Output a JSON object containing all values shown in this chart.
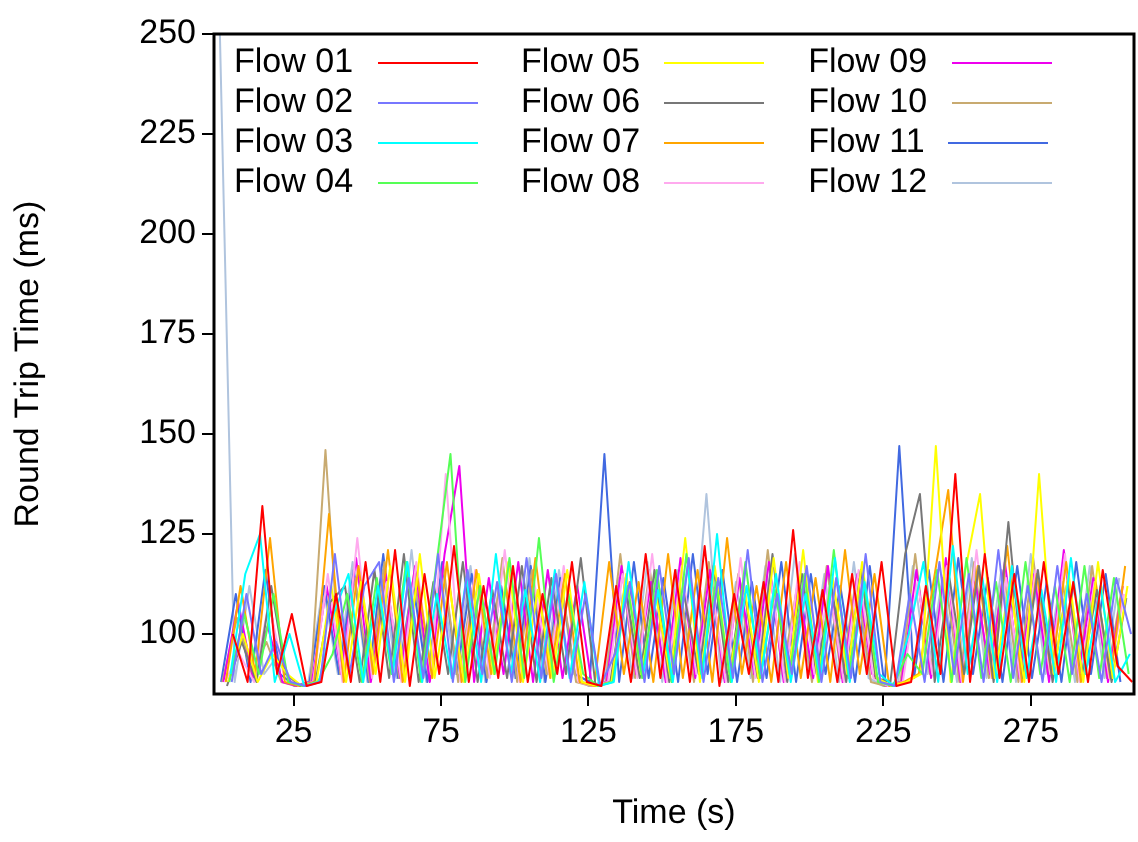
{
  "chart_data": {
    "type": "line",
    "xlabel": "Time (s)",
    "ylabel": "Round Trip Time (ms)",
    "xlim": [
      -2,
      310
    ],
    "xticks": [
      25,
      75,
      125,
      175,
      225,
      275
    ],
    "ylim": [
      85,
      250
    ],
    "yticks": [
      100,
      125,
      150,
      175,
      200,
      225,
      250
    ],
    "grid": false,
    "legend": "top",
    "marker": "none",
    "line_style": "solid",
    "x": [
      0,
      5,
      10,
      15,
      20,
      25,
      30,
      35,
      40,
      45,
      50,
      55,
      60,
      65,
      70,
      75,
      80,
      85,
      90,
      95,
      100,
      105,
      110,
      115,
      120,
      125,
      130,
      135,
      140,
      145,
      150,
      155,
      160,
      165,
      170,
      175,
      180,
      185,
      190,
      195,
      200,
      205,
      210,
      215,
      220,
      225,
      230,
      235,
      240,
      245,
      250,
      255,
      260,
      265,
      270,
      275,
      280,
      285,
      290,
      295,
      300,
      305
    ],
    "series": [
      {
        "name": "Flow 01",
        "color": "#ff0000",
        "x": [
          4.4,
          9.4,
          14.4,
          19.4,
          24.4,
          29.4,
          34.4,
          39.4,
          44.4,
          49.4,
          54.4,
          59.4,
          64.4,
          69.4,
          74.4,
          79.4,
          84.4,
          89.4,
          94.4,
          99.4,
          104.4,
          109.4,
          114.4,
          119.4,
          124.4,
          129.4,
          134.4,
          139.4,
          144.4,
          149.4,
          154.4,
          159.4,
          164.4,
          169.4,
          174.4,
          179.4,
          184.4,
          189.4,
          194.4,
          199.4,
          204.4,
          209.4,
          214.4,
          219.4,
          224.4,
          229.4,
          234.4,
          239.4,
          244.4,
          249.4,
          254.4,
          259.4,
          264.4,
          269.4,
          274.4,
          279.4,
          284.4,
          289.4,
          294.4,
          299.4,
          304.4,
          309.4
        ],
        "values": [
          100,
          88,
          132,
          90,
          105,
          87,
          88,
          110,
          88,
          118,
          88,
          121,
          87,
          115,
          90,
          122,
          88,
          112,
          89,
          117,
          88,
          110,
          90,
          118,
          88,
          87,
          112,
          88,
          120,
          89,
          116,
          88,
          122,
          87,
          110,
          90,
          113,
          88,
          126,
          89,
          111,
          88,
          115,
          90,
          118,
          87,
          88,
          112,
          90,
          140,
          88,
          120,
          89,
          115,
          88,
          118,
          90,
          113,
          88,
          116,
          92,
          88
        ]
      },
      {
        "name": "Flow 02",
        "color": "#7777ff",
        "x": [
          4,
          9,
          14,
          19,
          24,
          29,
          34,
          39,
          44,
          49,
          54,
          59,
          64,
          69,
          74,
          79,
          84,
          89,
          94,
          99,
          104,
          109,
          114,
          119,
          124,
          129,
          134,
          139,
          144,
          149,
          154,
          159,
          164,
          169,
          174,
          179,
          184,
          189,
          194,
          199,
          204,
          209,
          214,
          219,
          224,
          229,
          234,
          239,
          244,
          249,
          254,
          259,
          264,
          269,
          274,
          279,
          284,
          289,
          294,
          299,
          304,
          309
        ],
        "values": [
          88,
          110,
          90,
          98,
          88,
          87,
          88,
          120,
          90,
          112,
          118,
          88,
          114,
          89,
          120,
          88,
          116,
          90,
          113,
          88,
          119,
          89,
          115,
          88,
          110,
          87,
          95,
          113,
          88,
          117,
          90,
          119,
          88,
          114,
          89,
          121,
          88,
          110,
          90,
          117,
          88,
          114,
          89,
          120,
          88,
          87,
          110,
          88,
          118,
          90,
          115,
          88,
          121,
          89,
          112,
          88,
          117,
          90,
          110,
          88,
          114,
          100
        ]
      },
      {
        "name": "Flow 03",
        "color": "#00ffff",
        "x": [
          3.6,
          8.6,
          13.6,
          18.6,
          23.6,
          28.6,
          33.6,
          38.6,
          43.6,
          48.6,
          53.6,
          58.6,
          63.6,
          68.6,
          73.6,
          78.6,
          83.6,
          88.6,
          93.6,
          98.6,
          103.6,
          108.6,
          113.6,
          118.6,
          123.6,
          128.6,
          133.6,
          138.6,
          143.6,
          148.6,
          153.6,
          158.6,
          163.6,
          168.6,
          173.6,
          178.6,
          183.6,
          188.6,
          193.6,
          198.6,
          203.6,
          208.6,
          213.6,
          218.6,
          223.6,
          228.6,
          233.6,
          238.6,
          243.6,
          248.6,
          253.6,
          258.6,
          263.6,
          268.6,
          273.6,
          278.6,
          283.6,
          288.6,
          293.6,
          298.6,
          303.6,
          308.6
        ],
        "values": [
          90,
          115,
          125,
          88,
          100,
          87,
          88,
          105,
          115,
          88,
          112,
          90,
          118,
          88,
          110,
          89,
          114,
          88,
          120,
          90,
          111,
          88,
          116,
          89,
          113,
          87,
          88,
          118,
          90,
          111,
          88,
          117,
          89,
          125,
          88,
          112,
          90,
          115,
          88,
          110,
          89,
          119,
          88,
          113,
          90,
          87,
          100,
          118,
          88,
          122,
          90,
          114,
          88,
          117,
          89,
          111,
          88,
          119,
          90,
          112,
          88,
          95
        ]
      },
      {
        "name": "Flow 04",
        "color": "#55ff55",
        "x": [
          3.2,
          8.2,
          13.2,
          18.2,
          23.2,
          28.2,
          33.2,
          38.2,
          43.2,
          48.2,
          53.2,
          58.2,
          63.2,
          68.2,
          73.2,
          78.2,
          83.2,
          88.2,
          93.2,
          98.2,
          103.2,
          108.2,
          113.2,
          118.2,
          123.2,
          128.2,
          133.2,
          138.2,
          143.2,
          148.2,
          153.2,
          158.2,
          163.2,
          168.2,
          173.2,
          178.2,
          183.2,
          188.2,
          193.2,
          198.2,
          203.2,
          208.2,
          213.2,
          218.2,
          223.2,
          228.2,
          233.2,
          238.2,
          243.2,
          248.2,
          253.2,
          258.2,
          263.2,
          268.2,
          273.2,
          278.2,
          283.2,
          288.2,
          293.2,
          298.2,
          303.2,
          308.2
        ],
        "values": [
          88,
          105,
          90,
          110,
          88,
          87,
          88,
          95,
          110,
          88,
          114,
          90,
          118,
          88,
          116,
          145,
          88,
          112,
          90,
          119,
          89,
          124,
          88,
          110,
          90,
          87,
          88,
          112,
          89,
          116,
          88,
          120,
          90,
          113,
          88,
          118,
          89,
          111,
          90,
          115,
          88,
          121,
          89,
          114,
          88,
          87,
          95,
          90,
          116,
          88,
          119,
          89,
          113,
          88,
          118,
          90,
          112,
          88,
          117,
          89,
          114,
          90
        ]
      },
      {
        "name": "Flow 05",
        "color": "#ffff00",
        "x": [
          2.8,
          7.8,
          12.8,
          17.8,
          22.8,
          27.8,
          32.8,
          37.8,
          42.8,
          47.8,
          52.8,
          57.8,
          62.8,
          67.8,
          72.8,
          77.8,
          82.8,
          87.8,
          92.8,
          97.8,
          102.8,
          107.8,
          112.8,
          117.8,
          122.8,
          127.8,
          132.8,
          137.8,
          142.8,
          147.8,
          152.8,
          157.8,
          162.8,
          167.8,
          172.8,
          177.8,
          182.8,
          187.8,
          192.8,
          197.8,
          202.8,
          207.8,
          212.8,
          217.8,
          222.8,
          227.8,
          232.8,
          237.8,
          242.8,
          247.8,
          252.8,
          257.8,
          262.8,
          267.8,
          272.8,
          277.8,
          282.8,
          287.8,
          292.8,
          297.8,
          302.8,
          307.8
        ],
        "values": [
          88,
          100,
          88,
          95,
          90,
          87,
          88,
          112,
          88,
          113,
          90,
          117,
          88,
          120,
          89,
          112,
          88,
          115,
          90,
          118,
          88,
          111,
          89,
          116,
          88,
          87,
          88,
          115,
          90,
          110,
          89,
          124,
          88,
          117,
          90,
          112,
          88,
          119,
          89,
          121,
          88,
          114,
          90,
          118,
          89,
          87,
          88,
          90,
          147,
          88,
          116,
          135,
          89,
          113,
          88,
          140,
          90,
          115,
          88,
          118,
          89,
          112
        ]
      },
      {
        "name": "Flow 06",
        "color": "#777777",
        "x": [
          2.4,
          7.4,
          12.4,
          17.4,
          22.4,
          27.4,
          32.4,
          37.4,
          42.4,
          47.4,
          52.4,
          57.4,
          62.4,
          67.4,
          72.4,
          77.4,
          82.4,
          87.4,
          92.4,
          97.4,
          102.4,
          107.4,
          112.4,
          117.4,
          122.4,
          127.4,
          132.4,
          137.4,
          142.4,
          147.4,
          152.4,
          157.4,
          162.4,
          167.4,
          172.4,
          177.4,
          182.4,
          187.4,
          192.4,
          197.4,
          202.4,
          207.4,
          212.4,
          217.4,
          222.4,
          227.4,
          232.4,
          237.4,
          242.4,
          247.4,
          252.4,
          257.4,
          262.4,
          267.4,
          272.4,
          277.4,
          282.4,
          287.4,
          292.4,
          297.4,
          302.4,
          307.4
        ],
        "values": [
          87,
          98,
          88,
          112,
          90,
          87,
          88,
          108,
          112,
          88,
          116,
          89,
          120,
          88,
          113,
          90,
          118,
          88,
          111,
          89,
          117,
          88,
          114,
          90,
          119,
          87,
          88,
          112,
          89,
          116,
          88,
          110,
          90,
          117,
          88,
          113,
          89,
          120,
          88,
          115,
          90,
          112,
          88,
          116,
          89,
          88,
          120,
          135,
          88,
          114,
          90,
          117,
          88,
          128,
          89,
          116,
          88,
          113,
          90,
          111,
          88,
          109
        ]
      },
      {
        "name": "Flow 07",
        "color": "#ffa500",
        "x": [
          2,
          7,
          12,
          17,
          22,
          27,
          32,
          37,
          42,
          47,
          52,
          57,
          62,
          67,
          72,
          77,
          82,
          87,
          92,
          97,
          102,
          107,
          112,
          117,
          122,
          127,
          132,
          137,
          142,
          147,
          152,
          157,
          162,
          167,
          172,
          177,
          182,
          187,
          192,
          197,
          202,
          207,
          212,
          217,
          222,
          227,
          232,
          237,
          242,
          247,
          252,
          257,
          262,
          267,
          272,
          277,
          282,
          287,
          292,
          297,
          302,
          307
        ],
        "values": [
          88,
          112,
          90,
          124,
          88,
          87,
          88,
          130,
          88,
          117,
          90,
          121,
          88,
          114,
          89,
          118,
          88,
          116,
          90,
          112,
          88,
          119,
          89,
          115,
          88,
          87,
          118,
          90,
          113,
          88,
          120,
          89,
          116,
          88,
          124,
          90,
          112,
          88,
          118,
          89,
          114,
          88,
          121,
          90,
          115,
          87,
          88,
          90,
          113,
          136,
          88,
          117,
          89,
          122,
          88,
          115,
          90,
          118,
          88,
          113,
          89,
          117
        ]
      },
      {
        "name": "Flow 08",
        "color": "#ffaaee",
        "x": [
          1.6,
          6.6,
          11.6,
          16.6,
          21.6,
          26.6,
          31.6,
          36.6,
          41.6,
          46.6,
          51.6,
          56.6,
          61.6,
          66.6,
          71.6,
          76.6,
          81.6,
          86.6,
          91.6,
          96.6,
          101.6,
          106.6,
          111.6,
          116.6,
          121.6,
          126.6,
          131.6,
          136.6,
          141.6,
          146.6,
          151.6,
          156.6,
          161.6,
          166.6,
          171.6,
          176.6,
          181.6,
          186.6,
          191.6,
          196.6,
          201.6,
          206.6,
          211.6,
          216.6,
          221.6,
          226.6,
          231.6,
          236.6,
          241.6,
          246.6,
          251.6,
          256.6,
          261.6,
          266.6,
          271.6,
          276.6,
          281.6,
          286.6,
          291.6,
          296.6,
          301.6,
          306.6
        ],
        "values": [
          88,
          95,
          88,
          108,
          90,
          87,
          88,
          115,
          88,
          124,
          89,
          113,
          88,
          118,
          90,
          140,
          88,
          116,
          89,
          121,
          88,
          113,
          90,
          117,
          88,
          87,
          88,
          115,
          89,
          120,
          88,
          117,
          90,
          113,
          88,
          119,
          89,
          115,
          88,
          118,
          90,
          112,
          88,
          116,
          89,
          87,
          88,
          113,
          90,
          117,
          88,
          121,
          89,
          114,
          88,
          116,
          90,
          120,
          88,
          113,
          89,
          110
        ]
      },
      {
        "name": "Flow 09",
        "color": "#ee00ee",
        "x": [
          1.2,
          6.2,
          11.2,
          16.2,
          21.2,
          26.2,
          31.2,
          36.2,
          41.2,
          46.2,
          51.2,
          56.2,
          61.2,
          66.2,
          71.2,
          76.2,
          81.2,
          86.2,
          91.2,
          96.2,
          101.2,
          106.2,
          111.2,
          116.2,
          121.2,
          126.2,
          131.2,
          136.2,
          141.2,
          146.2,
          151.2,
          156.2,
          161.2,
          166.2,
          171.2,
          176.2,
          181.2,
          186.2,
          191.2,
          196.2,
          201.2,
          206.2,
          211.2,
          216.2,
          221.2,
          226.2,
          231.2,
          236.2,
          241.2,
          246.2,
          251.2,
          256.2,
          261.2,
          266.2,
          271.2,
          276.2,
          281.2,
          286.2,
          291.2,
          296.2,
          301.2,
          306.2
        ],
        "values": [
          88,
          108,
          89,
          102,
          88,
          87,
          88,
          112,
          90,
          119,
          88,
          115,
          89,
          117,
          88,
          120,
          142,
          88,
          114,
          90,
          118,
          88,
          116,
          89,
          112,
          87,
          88,
          117,
          90,
          113,
          88,
          119,
          89,
          116,
          88,
          114,
          90,
          118,
          88,
          112,
          89,
          117,
          88,
          115,
          90,
          87,
          88,
          116,
          89,
          119,
          88,
          113,
          90,
          118,
          89,
          115,
          88,
          121,
          90,
          114,
          88,
          112
        ]
      },
      {
        "name": "Flow 10",
        "color": "#c8aa70",
        "x": [
          0.8,
          5.8,
          10.8,
          15.8,
          20.8,
          25.8,
          30.8,
          35.8,
          40.8,
          45.8,
          50.8,
          55.8,
          60.8,
          65.8,
          70.8,
          75.8,
          80.8,
          85.8,
          90.8,
          95.8,
          100.8,
          105.8,
          110.8,
          115.8,
          120.8,
          125.8,
          130.8,
          135.8,
          140.8,
          145.8,
          150.8,
          155.8,
          160.8,
          165.8,
          170.8,
          175.8,
          180.8,
          185.8,
          190.8,
          195.8,
          200.8,
          205.8,
          210.8,
          215.8,
          220.8,
          225.8,
          230.8,
          235.8,
          240.8,
          245.8,
          250.8,
          255.8,
          260.8,
          265.8,
          270.8,
          275.8,
          280.8,
          285.8,
          290.8,
          295.8,
          300.8,
          305.8
        ],
        "values": [
          88,
          104,
          90,
          98,
          88,
          87,
          88,
          146,
          90,
          114,
          88,
          118,
          89,
          115,
          90,
          117,
          88,
          112,
          89,
          119,
          88,
          116,
          90,
          113,
          88,
          87,
          88,
          120,
          89,
          116,
          90,
          113,
          88,
          118,
          89,
          115,
          88,
          121,
          90,
          112,
          88,
          117,
          89,
          114,
          88,
          87,
          88,
          120,
          90,
          115,
          88,
          118,
          89,
          116,
          88,
          119,
          90,
          113,
          88,
          117,
          89,
          111
        ]
      },
      {
        "name": "Flow 11",
        "color": "#4169e1",
        "x": [
          0.4,
          5.4,
          10.4,
          15.4,
          20.4,
          25.4,
          30.4,
          35.4,
          40.4,
          45.4,
          50.4,
          55.4,
          60.4,
          65.4,
          70.4,
          75.4,
          80.4,
          85.4,
          90.4,
          95.4,
          100.4,
          105.4,
          110.4,
          115.4,
          120.4,
          125.4,
          130.4,
          135.4,
          140.4,
          145.4,
          150.4,
          155.4,
          160.4,
          165.4,
          170.4,
          175.4,
          180.4,
          185.4,
          190.4,
          195.4,
          200.4,
          205.4,
          210.4,
          215.4,
          220.4,
          225.4,
          230.4,
          235.4,
          240.4,
          245.4,
          250.4,
          255.4,
          260.4,
          265.4,
          270.4,
          275.4,
          280.4,
          285.4,
          290.4,
          295.4,
          300.4,
          305.4
        ],
        "values": [
          88,
          110,
          88,
          116,
          90,
          87,
          88,
          112,
          90,
          116,
          88,
          120,
          89,
          113,
          88,
          118,
          90,
          115,
          88,
          112,
          89,
          117,
          88,
          114,
          90,
          88,
          145,
          88,
          118,
          89,
          114,
          88,
          120,
          90,
          116,
          88,
          113,
          89,
          118,
          88,
          115,
          90,
          112,
          88,
          117,
          87,
          147,
          89,
          116,
          88,
          119,
          90,
          114,
          88,
          117,
          89,
          113,
          88,
          118,
          90,
          115,
          88
        ]
      },
      {
        "name": "Flow 12",
        "color": "#b0c4de",
        "values": [
          250,
          88,
          112,
          90,
          95,
          87,
          88,
          112,
          90,
          118,
          88,
          116,
          89,
          121,
          88,
          114,
          90,
          117,
          88,
          113,
          89,
          119,
          88,
          116,
          90,
          87,
          88,
          114,
          89,
          118,
          88,
          116,
          90,
          135,
          88,
          113,
          89,
          117,
          88,
          120,
          90,
          115,
          88,
          118,
          89,
          87,
          88,
          117,
          90,
          114,
          88,
          119,
          89,
          116,
          88,
          120,
          90,
          113,
          88,
          117,
          89,
          114
        ]
      }
    ]
  }
}
